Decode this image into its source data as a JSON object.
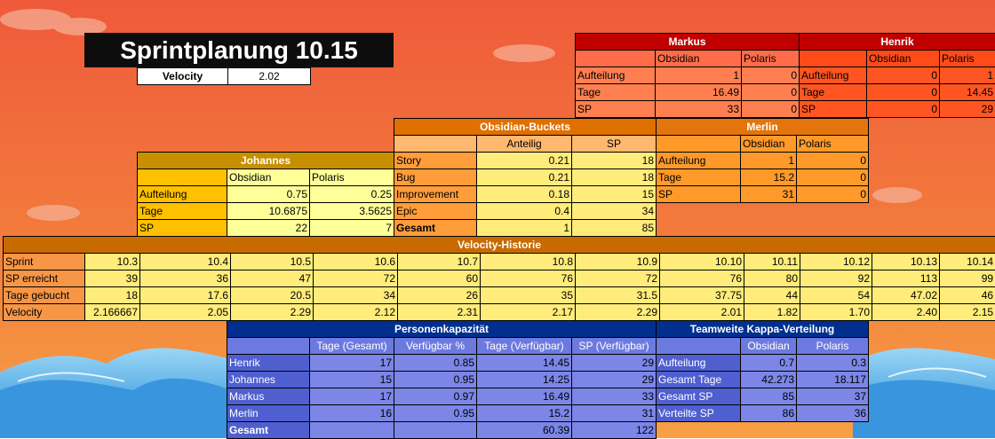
{
  "title": "Sprintplanung 10.15",
  "velocity": {
    "label": "Velocity",
    "value": "2.02"
  },
  "markus": {
    "name": "Markus",
    "cols": [
      "Obsidian",
      "Polaris"
    ],
    "rows": [
      [
        "Aufteilung",
        "1",
        "0"
      ],
      [
        "Tage",
        "16.49",
        "0"
      ],
      [
        "SP",
        "33",
        "0"
      ]
    ]
  },
  "henrik": {
    "name": "Henrik",
    "cols": [
      "Obsidian",
      "Polaris"
    ],
    "rows": [
      [
        "Aufteilung",
        "0",
        "1"
      ],
      [
        "Tage",
        "0",
        "14.45"
      ],
      [
        "SP",
        "0",
        "29"
      ]
    ]
  },
  "buckets": {
    "name": "Obsidian-Buckets",
    "cols": [
      "Anteilig",
      "SP"
    ],
    "rows": [
      [
        "Story",
        "0.21",
        "18"
      ],
      [
        "Bug",
        "0.21",
        "18"
      ],
      [
        "Improvement",
        "0.18",
        "15"
      ],
      [
        "Epic",
        "0.4",
        "34"
      ],
      [
        "Gesamt",
        "1",
        "85"
      ]
    ]
  },
  "merlin": {
    "name": "Merlin",
    "cols": [
      "Obsidian",
      "Polaris"
    ],
    "rows": [
      [
        "Aufteilung",
        "1",
        "0"
      ],
      [
        "Tage",
        "15.2",
        "0"
      ],
      [
        "SP",
        "31",
        "0"
      ]
    ]
  },
  "johannes": {
    "name": "Johannes",
    "cols": [
      "Obsidian",
      "Polaris"
    ],
    "rows": [
      [
        "Aufteilung",
        "0.75",
        "0.25"
      ],
      [
        "Tage",
        "10.6875",
        "3.5625"
      ],
      [
        "SP",
        "22",
        "7"
      ]
    ]
  },
  "history": {
    "name": "Velocity-Historie",
    "rows": [
      [
        "Sprint",
        "10.3",
        "10.4",
        "10.5",
        "10.6",
        "10.7",
        "10.8",
        "10.9",
        "10.10",
        "10.11",
        "10.12",
        "10.13",
        "10.14"
      ],
      [
        "SP erreicht",
        "39",
        "36",
        "47",
        "72",
        "60",
        "76",
        "72",
        "76",
        "80",
        "92",
        "113",
        "99"
      ],
      [
        "Tage gebucht",
        "18",
        "17.6",
        "20.5",
        "34",
        "26",
        "35",
        "31.5",
        "37.75",
        "44",
        "54",
        "47.02",
        "46"
      ],
      [
        "Velocity",
        "2.166667",
        "2.05",
        "2.29",
        "2.12",
        "2.31",
        "2.17",
        "2.29",
        "2.01",
        "1.82",
        "1.70",
        "2.40",
        "2.15"
      ]
    ]
  },
  "capacity": {
    "name": "Personenkapazität",
    "cols": [
      "Tage (Gesamt)",
      "Verfügbar %",
      "Tage (Verfügbar)",
      "SP (Verfügbar)"
    ],
    "rows": [
      [
        "Henrik",
        "17",
        "0.85",
        "14.45",
        "29"
      ],
      [
        "Johannes",
        "15",
        "0.95",
        "14.25",
        "29"
      ],
      [
        "Markus",
        "17",
        "0.97",
        "16.49",
        "33"
      ],
      [
        "Merlin",
        "16",
        "0.95",
        "15.2",
        "31"
      ]
    ],
    "total": [
      "Gesamt",
      "",
      "",
      "60.39",
      "122"
    ]
  },
  "kappa": {
    "name": "Teamweite Kappa-Verteilung",
    "cols": [
      "Obsidian",
      "Polaris"
    ],
    "rows": [
      [
        "Aufteilung",
        "0.7",
        "0.3"
      ],
      [
        "Gesamt Tage",
        "42.273",
        "18.117"
      ],
      [
        "Gesamt SP",
        "85",
        "37"
      ],
      [
        "Verteilte SP",
        "86",
        "36"
      ]
    ]
  },
  "colors": {
    "accent_red": "#c00000",
    "navy": "#002f8e",
    "gold": "#c79000"
  }
}
